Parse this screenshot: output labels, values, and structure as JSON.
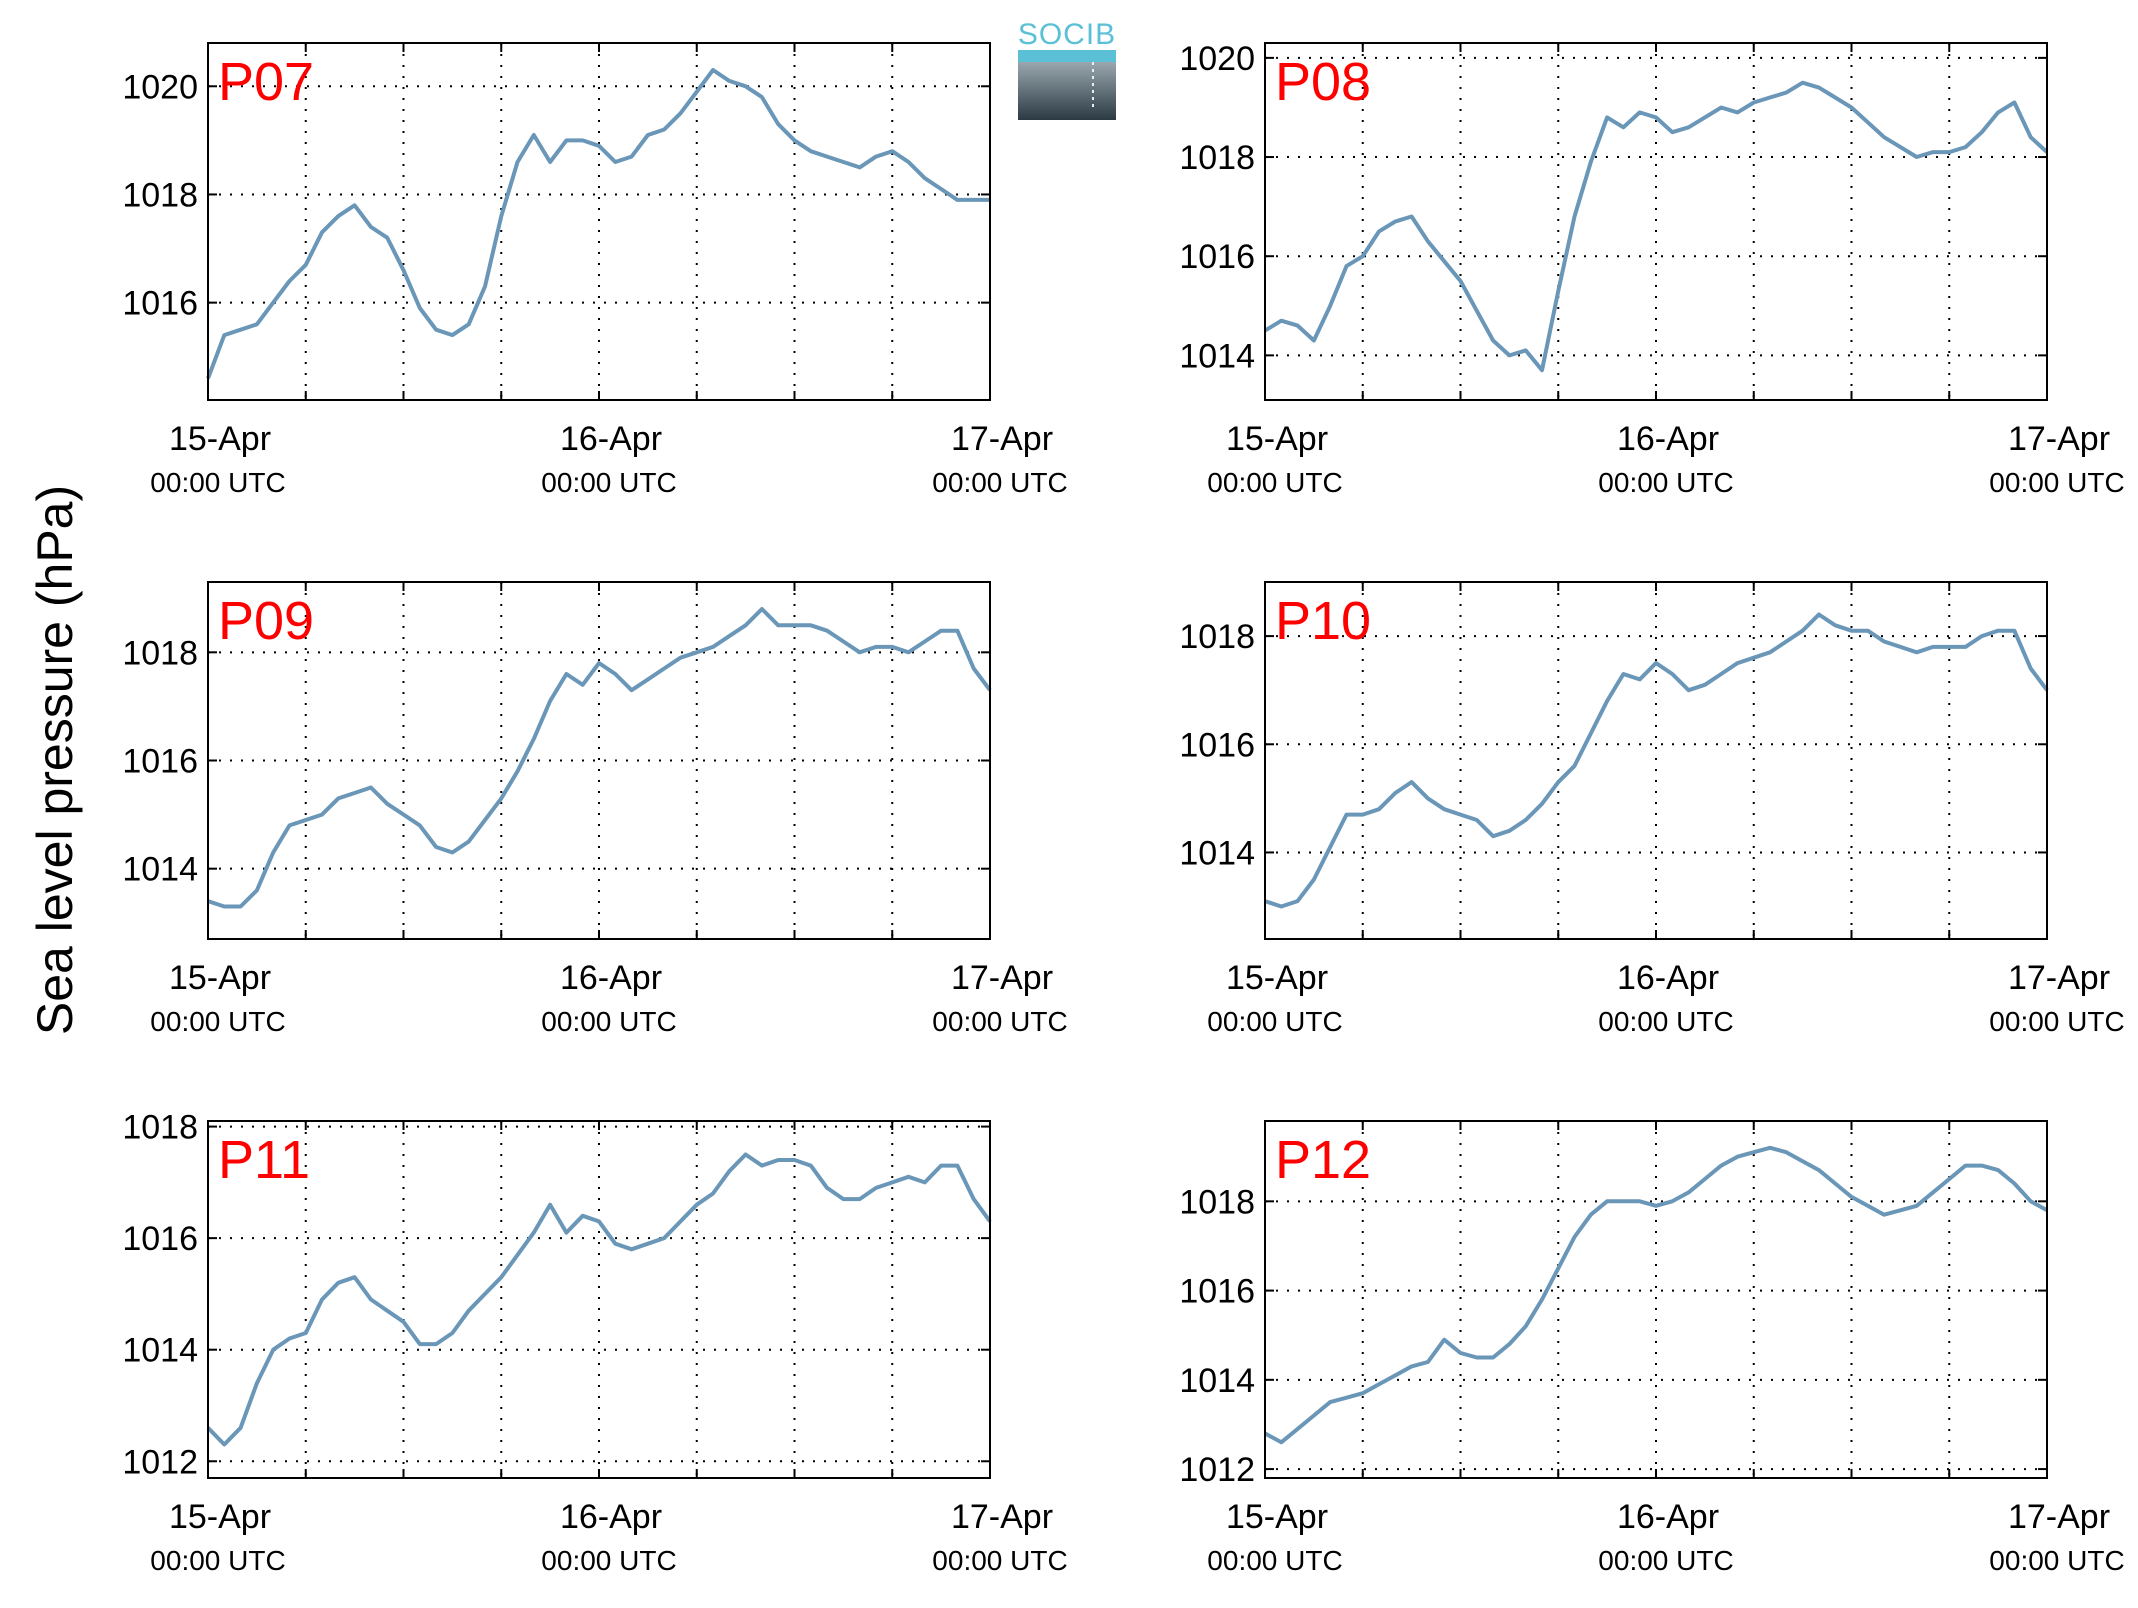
{
  "figure": {
    "ylabel": "Sea level pressure (hPa)",
    "logo_text": "SOCIB",
    "line_color": "#6a96b8",
    "label_color": "#ff0000"
  },
  "chart_data": [
    {
      "type": "line",
      "label": "P07",
      "xlim": [
        0,
        48
      ],
      "ylim": [
        1014.2,
        1020.8
      ],
      "yticks": [
        1016,
        1018,
        1020
      ],
      "xticks": [
        {
          "x": 0,
          "date": "15-Apr",
          "time": "00:00 UTC"
        },
        {
          "x": 24,
          "date": "16-Apr",
          "time": "00:00 UTC"
        },
        {
          "x": 48,
          "date": "17-Apr",
          "time": "00:00 UTC"
        }
      ],
      "grid": true,
      "x": [
        0,
        1,
        2,
        3,
        4,
        5,
        6,
        7,
        8,
        9,
        10,
        11,
        12,
        13,
        14,
        15,
        16,
        17,
        18,
        19,
        20,
        21,
        22,
        23,
        24,
        25,
        26,
        27,
        28,
        29,
        30,
        31,
        32,
        33,
        34,
        35,
        36,
        37,
        38,
        39,
        40,
        41,
        42,
        43,
        44,
        45,
        46,
        47,
        48
      ],
      "y": [
        1014.6,
        1015.4,
        1015.5,
        1015.6,
        1016.0,
        1016.4,
        1016.7,
        1017.3,
        1017.6,
        1017.8,
        1017.4,
        1017.2,
        1016.6,
        1015.9,
        1015.5,
        1015.4,
        1015.6,
        1016.3,
        1017.6,
        1018.6,
        1019.1,
        1018.6,
        1019.0,
        1019.0,
        1018.9,
        1018.6,
        1018.7,
        1019.1,
        1019.2,
        1019.5,
        1019.9,
        1020.3,
        1020.1,
        1020.0,
        1019.8,
        1019.3,
        1019.0,
        1018.8,
        1018.7,
        1018.6,
        1018.5,
        1018.7,
        1018.8,
        1018.6,
        1018.3,
        1018.1,
        1017.9,
        1017.9,
        1017.9
      ]
    },
    {
      "type": "line",
      "label": "P08",
      "xlim": [
        0,
        48
      ],
      "ylim": [
        1013.1,
        1020.3
      ],
      "yticks": [
        1014,
        1016,
        1018,
        1020
      ],
      "xticks": [
        {
          "x": 0,
          "date": "15-Apr",
          "time": "00:00 UTC"
        },
        {
          "x": 24,
          "date": "16-Apr",
          "time": "00:00 UTC"
        },
        {
          "x": 48,
          "date": "17-Apr",
          "time": "00:00 UTC"
        }
      ],
      "grid": true,
      "x": [
        0,
        1,
        2,
        3,
        4,
        5,
        6,
        7,
        8,
        9,
        10,
        11,
        12,
        13,
        14,
        15,
        16,
        17,
        18,
        19,
        20,
        21,
        22,
        23,
        24,
        25,
        26,
        27,
        28,
        29,
        30,
        31,
        32,
        33,
        34,
        35,
        36,
        37,
        38,
        39,
        40,
        41,
        42,
        43,
        44,
        45,
        46,
        47,
        48
      ],
      "y": [
        1014.5,
        1014.7,
        1014.6,
        1014.3,
        1015.0,
        1015.8,
        1016.0,
        1016.5,
        1016.7,
        1016.8,
        1016.3,
        1015.9,
        1015.5,
        1014.9,
        1014.3,
        1014.0,
        1014.1,
        1013.7,
        1015.3,
        1016.8,
        1017.9,
        1018.8,
        1018.6,
        1018.9,
        1018.8,
        1018.5,
        1018.6,
        1018.8,
        1019.0,
        1018.9,
        1019.1,
        1019.2,
        1019.3,
        1019.5,
        1019.4,
        1019.2,
        1019.0,
        1018.7,
        1018.4,
        1018.2,
        1018.0,
        1018.1,
        1018.1,
        1018.2,
        1018.5,
        1018.9,
        1019.1,
        1018.4,
        1018.1
      ]
    },
    {
      "type": "line",
      "label": "P09",
      "xlim": [
        0,
        48
      ],
      "ylim": [
        1012.7,
        1019.3
      ],
      "yticks": [
        1014,
        1016,
        1018
      ],
      "xticks": [
        {
          "x": 0,
          "date": "15-Apr",
          "time": "00:00 UTC"
        },
        {
          "x": 24,
          "date": "16-Apr",
          "time": "00:00 UTC"
        },
        {
          "x": 48,
          "date": "17-Apr",
          "time": "00:00 UTC"
        }
      ],
      "grid": true,
      "x": [
        0,
        1,
        2,
        3,
        4,
        5,
        6,
        7,
        8,
        9,
        10,
        11,
        12,
        13,
        14,
        15,
        16,
        17,
        18,
        19,
        20,
        21,
        22,
        23,
        24,
        25,
        26,
        27,
        28,
        29,
        30,
        31,
        32,
        33,
        34,
        35,
        36,
        37,
        38,
        39,
        40,
        41,
        42,
        43,
        44,
        45,
        46,
        47,
        48
      ],
      "y": [
        1013.4,
        1013.3,
        1013.3,
        1013.6,
        1014.3,
        1014.8,
        1014.9,
        1015.0,
        1015.3,
        1015.4,
        1015.5,
        1015.2,
        1015.0,
        1014.8,
        1014.4,
        1014.3,
        1014.5,
        1014.9,
        1015.3,
        1015.8,
        1016.4,
        1017.1,
        1017.6,
        1017.4,
        1017.8,
        1017.6,
        1017.3,
        1017.5,
        1017.7,
        1017.9,
        1018.0,
        1018.1,
        1018.3,
        1018.5,
        1018.8,
        1018.5,
        1018.5,
        1018.5,
        1018.4,
        1018.2,
        1018.0,
        1018.1,
        1018.1,
        1018.0,
        1018.2,
        1018.4,
        1018.4,
        1017.7,
        1017.3
      ]
    },
    {
      "type": "line",
      "label": "P10",
      "xlim": [
        0,
        48
      ],
      "ylim": [
        1012.4,
        1019.0
      ],
      "yticks": [
        1014,
        1016,
        1018
      ],
      "xticks": [
        {
          "x": 0,
          "date": "15-Apr",
          "time": "00:00 UTC"
        },
        {
          "x": 24,
          "date": "16-Apr",
          "time": "00:00 UTC"
        },
        {
          "x": 48,
          "date": "17-Apr",
          "time": "00:00 UTC"
        }
      ],
      "grid": true,
      "x": [
        0,
        1,
        2,
        3,
        4,
        5,
        6,
        7,
        8,
        9,
        10,
        11,
        12,
        13,
        14,
        15,
        16,
        17,
        18,
        19,
        20,
        21,
        22,
        23,
        24,
        25,
        26,
        27,
        28,
        29,
        30,
        31,
        32,
        33,
        34,
        35,
        36,
        37,
        38,
        39,
        40,
        41,
        42,
        43,
        44,
        45,
        46,
        47,
        48
      ],
      "y": [
        1013.1,
        1013.0,
        1013.1,
        1013.5,
        1014.1,
        1014.7,
        1014.7,
        1014.8,
        1015.1,
        1015.3,
        1015.0,
        1014.8,
        1014.7,
        1014.6,
        1014.3,
        1014.4,
        1014.6,
        1014.9,
        1015.3,
        1015.6,
        1016.2,
        1016.8,
        1017.3,
        1017.2,
        1017.5,
        1017.3,
        1017.0,
        1017.1,
        1017.3,
        1017.5,
        1017.6,
        1017.7,
        1017.9,
        1018.1,
        1018.4,
        1018.2,
        1018.1,
        1018.1,
        1017.9,
        1017.8,
        1017.7,
        1017.8,
        1017.8,
        1017.8,
        1018.0,
        1018.1,
        1018.1,
        1017.4,
        1017.0
      ]
    },
    {
      "type": "line",
      "label": "P11",
      "xlim": [
        0,
        48
      ],
      "ylim": [
        1011.7,
        1018.1
      ],
      "yticks": [
        1012,
        1014,
        1016,
        1018
      ],
      "xticks": [
        {
          "x": 0,
          "date": "15-Apr",
          "time": "00:00 UTC"
        },
        {
          "x": 24,
          "date": "16-Apr",
          "time": "00:00 UTC"
        },
        {
          "x": 48,
          "date": "17-Apr",
          "time": "00:00 UTC"
        }
      ],
      "grid": true,
      "x": [
        0,
        1,
        2,
        3,
        4,
        5,
        6,
        7,
        8,
        9,
        10,
        11,
        12,
        13,
        14,
        15,
        16,
        17,
        18,
        19,
        20,
        21,
        22,
        23,
        24,
        25,
        26,
        27,
        28,
        29,
        30,
        31,
        32,
        33,
        34,
        35,
        36,
        37,
        38,
        39,
        40,
        41,
        42,
        43,
        44,
        45,
        46,
        47,
        48
      ],
      "y": [
        1012.6,
        1012.3,
        1012.6,
        1013.4,
        1014.0,
        1014.2,
        1014.3,
        1014.9,
        1015.2,
        1015.3,
        1014.9,
        1014.7,
        1014.5,
        1014.1,
        1014.1,
        1014.3,
        1014.7,
        1015.0,
        1015.3,
        1015.7,
        1016.1,
        1016.6,
        1016.1,
        1016.4,
        1016.3,
        1015.9,
        1015.8,
        1015.9,
        1016.0,
        1016.3,
        1016.6,
        1016.8,
        1017.2,
        1017.5,
        1017.3,
        1017.4,
        1017.4,
        1017.3,
        1016.9,
        1016.7,
        1016.7,
        1016.9,
        1017.0,
        1017.1,
        1017.0,
        1017.3,
        1017.3,
        1016.7,
        1016.3
      ]
    },
    {
      "type": "line",
      "label": "P12",
      "xlim": [
        0,
        48
      ],
      "ylim": [
        1011.8,
        1019.8
      ],
      "yticks": [
        1012,
        1014,
        1016,
        1018
      ],
      "xticks": [
        {
          "x": 0,
          "date": "15-Apr",
          "time": "00:00 UTC"
        },
        {
          "x": 24,
          "date": "16-Apr",
          "time": "00:00 UTC"
        },
        {
          "x": 48,
          "date": "17-Apr",
          "time": "00:00 UTC"
        }
      ],
      "grid": true,
      "x": [
        0,
        1,
        2,
        3,
        4,
        5,
        6,
        7,
        8,
        9,
        10,
        11,
        12,
        13,
        14,
        15,
        16,
        17,
        18,
        19,
        20,
        21,
        22,
        23,
        24,
        25,
        26,
        27,
        28,
        29,
        30,
        31,
        32,
        33,
        34,
        35,
        36,
        37,
        38,
        39,
        40,
        41,
        42,
        43,
        44,
        45,
        46,
        47,
        48
      ],
      "y": [
        1012.8,
        1012.6,
        1012.9,
        1013.2,
        1013.5,
        1013.6,
        1013.7,
        1013.9,
        1014.1,
        1014.3,
        1014.4,
        1014.9,
        1014.6,
        1014.5,
        1014.5,
        1014.8,
        1015.2,
        1015.8,
        1016.5,
        1017.2,
        1017.7,
        1018.0,
        1018.0,
        1018.0,
        1017.9,
        1018.0,
        1018.2,
        1018.5,
        1018.8,
        1019.0,
        1019.1,
        1019.2,
        1019.1,
        1018.9,
        1018.7,
        1018.4,
        1018.1,
        1017.9,
        1017.7,
        1017.8,
        1017.9,
        1018.2,
        1018.5,
        1018.8,
        1018.8,
        1018.7,
        1018.4,
        1018.0,
        1017.8
      ]
    }
  ]
}
